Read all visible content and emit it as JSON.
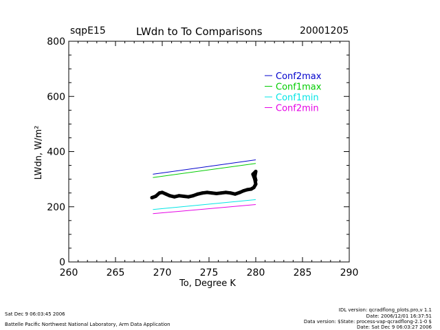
{
  "header": {
    "site": "sqpE15",
    "title": "LWdn to To Comparisons",
    "date": "20001205"
  },
  "footer": {
    "left_line1": "Sat Dec  9 06:03:45 2006",
    "left_line2": "Battelle Pacific Northwest National Laboratory, Arm Data Application",
    "right_line1": "IDL version: qcradflong_plots.pro,v 1.1",
    "right_line2": "Date: 2006/12/01 16:37:51",
    "right_line3": "Data version: $State: process-vap-qcradflong-2.1-0 $",
    "right_line4": "Date: Sat Dec  9 06:03:27 2006"
  },
  "chart_data": {
    "type": "line",
    "title": "LWdn to To Comparisons",
    "xlabel": "To, Degree K",
    "ylabel": "LWdn, W/m²",
    "xlim": [
      260,
      290
    ],
    "ylim": [
      0,
      800
    ],
    "xticks": [
      260,
      265,
      270,
      275,
      280,
      285,
      290
    ],
    "yticks": [
      0,
      200,
      400,
      600,
      800
    ],
    "grid": false,
    "legend_position": "top-right",
    "series": [
      {
        "name": "Conf2max",
        "color": "#0000cc",
        "x": [
          269.0,
          280.0
        ],
        "y": [
          318,
          370
        ]
      },
      {
        "name": "Conf1max",
        "color": "#00cc00",
        "x": [
          269.0,
          280.0
        ],
        "y": [
          306,
          357
        ]
      },
      {
        "name": "Conf1min",
        "color": "#00e5e5",
        "x": [
          269.0,
          280.0
        ],
        "y": [
          190,
          226
        ]
      },
      {
        "name": "Conf2min",
        "color": "#e500e5",
        "x": [
          269.0,
          280.0
        ],
        "y": [
          175,
          208
        ]
      }
    ],
    "observations": {
      "color": "#000000",
      "x": [
        268.9,
        269.3,
        269.7,
        270.0,
        270.4,
        270.8,
        271.3,
        271.8,
        272.3,
        272.8,
        273.3,
        273.8,
        274.3,
        274.8,
        275.3,
        275.8,
        276.3,
        276.8,
        277.3,
        277.8,
        278.3,
        278.7,
        279.1,
        279.5,
        279.8,
        280.0,
        279.9,
        279.7,
        280.0,
        279.9,
        280.0
      ],
      "y": [
        233,
        238,
        250,
        252,
        246,
        240,
        236,
        240,
        238,
        236,
        240,
        246,
        250,
        252,
        250,
        248,
        250,
        252,
        250,
        246,
        252,
        258,
        262,
        264,
        270,
        282,
        300,
        318,
        328,
        310,
        296
      ]
    }
  }
}
